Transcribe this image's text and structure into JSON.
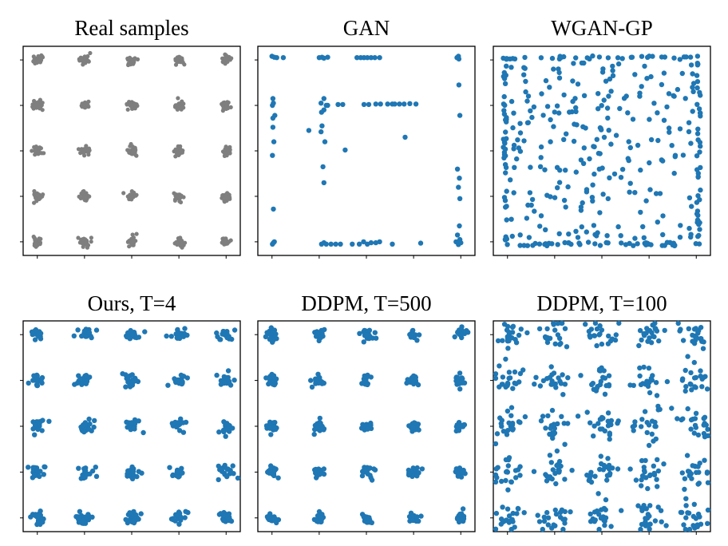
{
  "figure": {
    "background": "#ffffff",
    "colors": {
      "real": "#7f7f7f",
      "model": "#1f77b4",
      "frame": "#000000"
    }
  },
  "chart_data": [
    {
      "type": "scatter",
      "title": "Real samples",
      "color": "#7f7f7f",
      "xlim": [
        -2.3,
        2.3
      ],
      "ylim": [
        -2.3,
        2.3
      ],
      "grid": false,
      "legend": "none",
      "pattern": "5x5 grid of tight Gaussian clusters",
      "centers_x": [
        -2,
        -1,
        0,
        1,
        2
      ],
      "centers_y": [
        -2,
        -1,
        0,
        1,
        2
      ],
      "spread": 0.05,
      "n_per_mode": 26,
      "seed": 11
    },
    {
      "type": "scatter",
      "title": "GAN",
      "color": "#1f77b4",
      "xlim": [
        -2.3,
        2.3
      ],
      "ylim": [
        -2.3,
        2.3
      ],
      "grid": false,
      "legend": "none",
      "pattern": "samples concentrated on edges of the 5x5 grid (partial mode coverage)",
      "points": [
        [
          -2.0,
          2.08
        ],
        [
          -1.95,
          2.06
        ],
        [
          -1.9,
          2.05
        ],
        [
          -1.76,
          2.05
        ],
        [
          -1.0,
          2.05
        ],
        [
          -0.94,
          2.06
        ],
        [
          -0.9,
          2.04
        ],
        [
          -0.82,
          2.06
        ],
        [
          -0.2,
          2.05
        ],
        [
          -0.12,
          2.05
        ],
        [
          -0.05,
          2.05
        ],
        [
          0.02,
          2.05
        ],
        [
          0.1,
          2.05
        ],
        [
          0.18,
          2.05
        ],
        [
          0.28,
          2.05
        ],
        [
          1.92,
          2.05
        ],
        [
          1.95,
          2.08
        ],
        [
          1.96,
          2.02
        ],
        [
          -1.98,
          1.15
        ],
        [
          -1.97,
          1.05
        ],
        [
          -1.99,
          1.0
        ],
        [
          -1.94,
          0.78
        ],
        [
          -1.98,
          0.72
        ],
        [
          -1.98,
          0.52
        ],
        [
          -1.96,
          0.2
        ],
        [
          -1.99,
          -0.1
        ],
        [
          -1.97,
          -1.28
        ],
        [
          -1.99,
          -2.05
        ],
        [
          -1.95,
          -2.0
        ],
        [
          -1.97,
          -2.02
        ],
        [
          -0.9,
          1.15
        ],
        [
          -0.85,
          1.0
        ],
        [
          -0.96,
          1.05
        ],
        [
          -0.82,
          1.0
        ],
        [
          -0.9,
          0.9
        ],
        [
          -0.95,
          0.85
        ],
        [
          -0.94,
          0.55
        ],
        [
          -0.96,
          0.42
        ],
        [
          -0.88,
          0.2
        ],
        [
          -1.22,
          0.45
        ],
        [
          -0.92,
          -0.35
        ],
        [
          -0.9,
          -0.7
        ],
        [
          -0.6,
          1.02
        ],
        [
          -0.5,
          1.02
        ],
        [
          -0.05,
          1.02
        ],
        [
          0.05,
          1.02
        ],
        [
          0.2,
          1.03
        ],
        [
          0.3,
          1.03
        ],
        [
          0.45,
          1.03
        ],
        [
          0.55,
          1.03
        ],
        [
          0.6,
          1.03
        ],
        [
          0.7,
          1.03
        ],
        [
          0.8,
          1.03
        ],
        [
          0.92,
          1.04
        ],
        [
          1.05,
          1.03
        ],
        [
          -0.45,
          0.02
        ],
        [
          0.82,
          0.3
        ],
        [
          1.96,
          1.45
        ],
        [
          1.98,
          0.78
        ],
        [
          1.93,
          -0.4
        ],
        [
          1.97,
          -0.6
        ],
        [
          1.95,
          -0.8
        ],
        [
          1.98,
          -1.05
        ],
        [
          1.97,
          -1.65
        ],
        [
          1.93,
          -1.85
        ],
        [
          1.98,
          -1.95
        ],
        [
          -0.95,
          -2.05
        ],
        [
          -0.9,
          -2.02
        ],
        [
          -0.85,
          -2.05
        ],
        [
          -0.75,
          -2.05
        ],
        [
          -0.65,
          -2.05
        ],
        [
          -0.55,
          -2.05
        ],
        [
          -0.3,
          -2.05
        ],
        [
          -0.15,
          -2.05
        ],
        [
          -0.06,
          -2.0
        ],
        [
          0.02,
          -2.05
        ],
        [
          0.1,
          -2.02
        ],
        [
          0.2,
          -2.02
        ],
        [
          0.28,
          -2.0
        ],
        [
          0.55,
          -2.05
        ],
        [
          1.15,
          -2.03
        ],
        [
          1.9,
          -2.0
        ],
        [
          1.95,
          -2.06
        ],
        [
          2.0,
          -2.02
        ]
      ]
    },
    {
      "type": "scatter",
      "title": "WGAN-GP",
      "color": "#1f77b4",
      "xlim": [
        -2.3,
        2.3
      ],
      "ylim": [
        -2.3,
        2.3
      ],
      "grid": false,
      "legend": "none",
      "pattern": "dense border samples plus diffuse interior scatter",
      "edge_points": 160,
      "interior_points": 230,
      "edge": 2.05,
      "seed": 37
    },
    {
      "type": "scatter",
      "title": "Ours, T=4",
      "color": "#1f77b4",
      "xlim": [
        -2.3,
        2.3
      ],
      "ylim": [
        -2.3,
        2.3
      ],
      "grid": false,
      "legend": "none",
      "pattern": "5x5 grid of compact clusters with a few stray samples",
      "centers_x": [
        -2,
        -1,
        0,
        1,
        2
      ],
      "centers_y": [
        -2,
        -1,
        0,
        1,
        2
      ],
      "spread": 0.065,
      "n_per_mode": 18,
      "outliers_per_mode": 2,
      "seed": 53
    },
    {
      "type": "scatter",
      "title": "DDPM, T=500",
      "color": "#1f77b4",
      "xlim": [
        -2.3,
        2.3
      ],
      "ylim": [
        -2.3,
        2.3
      ],
      "grid": false,
      "legend": "none",
      "pattern": "5x5 grid of compact clusters",
      "centers_x": [
        -2,
        -1,
        0,
        1,
        2
      ],
      "centers_y": [
        -2,
        -1,
        0,
        1,
        2
      ],
      "spread": 0.06,
      "n_per_mode": 20,
      "outliers_per_mode": 0,
      "seed": 71
    },
    {
      "type": "scatter",
      "title": "DDPM, T=100",
      "color": "#1f77b4",
      "xlim": [
        -2.3,
        2.3
      ],
      "ylim": [
        -2.3,
        2.3
      ],
      "grid": false,
      "legend": "none",
      "pattern": "5x5 grid of diffuse, widely spread clusters",
      "centers_x": [
        -2,
        -1,
        0,
        1,
        2
      ],
      "centers_y": [
        -2,
        -1,
        0,
        1,
        2
      ],
      "spread": 0.17,
      "n_per_mode": 22,
      "outliers_per_mode": 0,
      "seed": 97
    }
  ]
}
